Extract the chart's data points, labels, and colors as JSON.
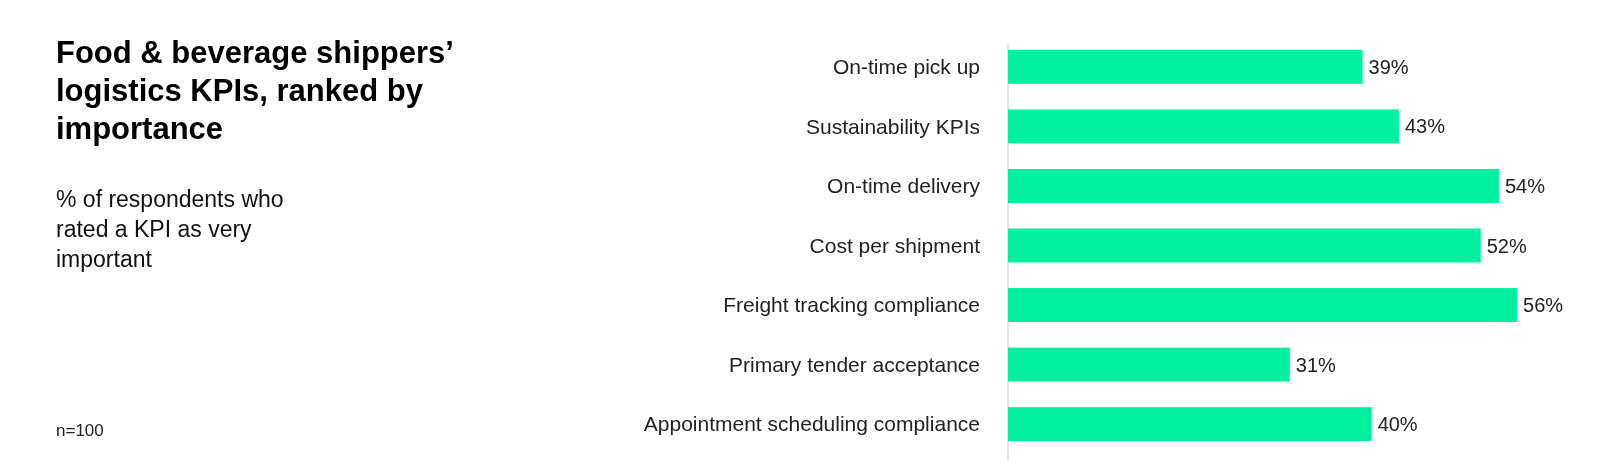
{
  "chart_data": {
    "type": "bar",
    "orientation": "horizontal",
    "title": "Food & beverage shippers’ logistics KPIs, ranked by importance",
    "subtitle": "% of respondents who rated a KPI as very important",
    "categories": [
      "On-time pick up",
      "Sustainability KPIs",
      "On-time delivery",
      "Cost per shipment",
      "Freight tracking compliance",
      "Primary tender acceptance",
      "Appointment scheduling compliance"
    ],
    "values": [
      39,
      43,
      54,
      52,
      56,
      31,
      40
    ],
    "color": "#00f0a0",
    "data_labels": true,
    "value_labels": [
      "39%",
      "43%",
      "54%",
      "52%",
      "56%",
      "31%",
      "40%"
    ],
    "annotations": [
      "n=100"
    ]
  }
}
